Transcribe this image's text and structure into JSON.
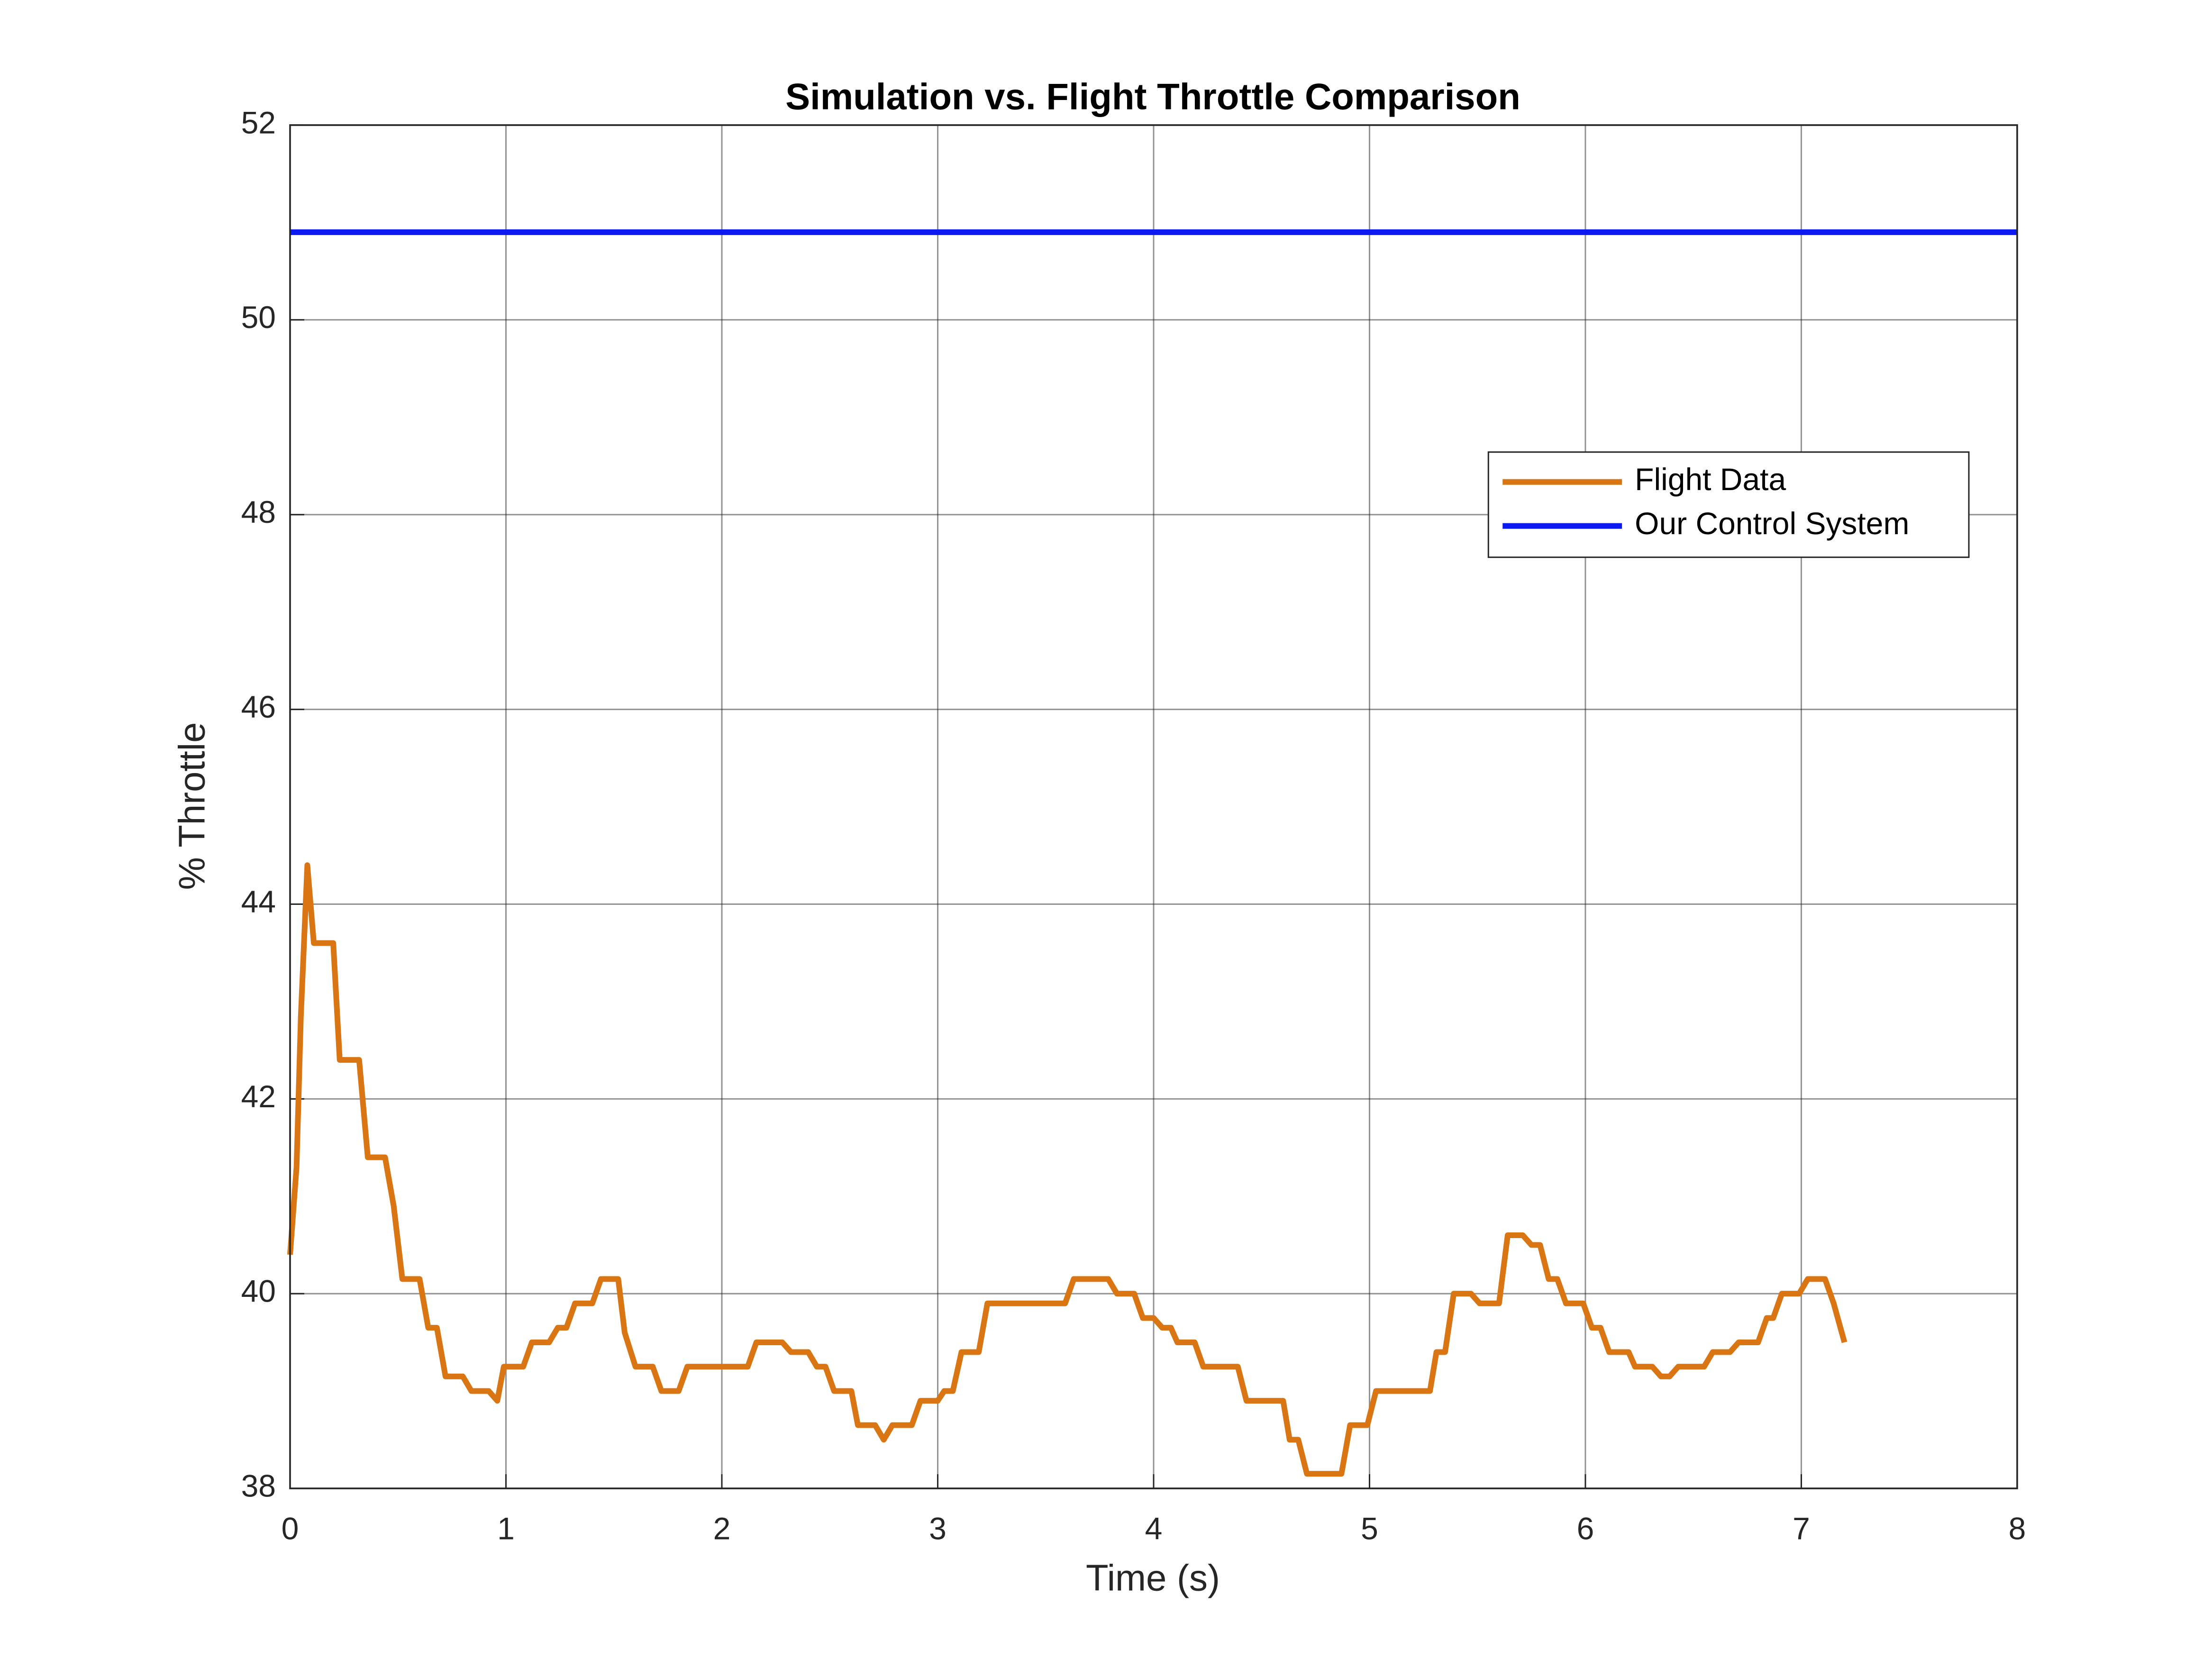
{
  "chart_data": {
    "type": "line",
    "title": "Simulation vs. Flight Throttle Comparison",
    "x_label": "Time (s)",
    "y_label": "% Throttle",
    "xlim": [
      0,
      8
    ],
    "xticks": [
      0,
      1,
      2,
      3,
      4,
      5,
      6,
      7,
      8
    ],
    "ylim": [
      38,
      52
    ],
    "yticks": [
      38,
      40,
      42,
      44,
      46,
      48,
      50,
      52
    ],
    "grid": true,
    "series": [
      {
        "name": "Flight Data",
        "color": "#d97512",
        "x": [
          0,
          0.03,
          0.05,
          0.08,
          0.11,
          0.2,
          0.23,
          0.32,
          0.36,
          0.44,
          0.48,
          0.52,
          0.6,
          0.64,
          0.68,
          0.72,
          0.8,
          0.84,
          0.92,
          0.96,
          0.99,
          1.08,
          1.12,
          1.2,
          1.24,
          1.28,
          1.32,
          1.4,
          1.44,
          1.52,
          1.55,
          1.6,
          1.68,
          1.72,
          1.8,
          1.84,
          2.12,
          2.16,
          2.28,
          2.32,
          2.4,
          2.44,
          2.48,
          2.52,
          2.6,
          2.63,
          2.71,
          2.75,
          2.79,
          2.88,
          2.92,
          3.0,
          3.03,
          3.07,
          3.11,
          3.19,
          3.23,
          3.59,
          3.63,
          3.79,
          3.83,
          3.91,
          3.95,
          4.0,
          4.04,
          4.08,
          4.11,
          4.19,
          4.23,
          4.39,
          4.43,
          4.6,
          4.63,
          4.67,
          4.71,
          4.87,
          4.91,
          4.99,
          5.03,
          5.28,
          5.31,
          5.35,
          5.39,
          5.47,
          5.51,
          5.6,
          5.64,
          5.71,
          5.75,
          5.79,
          5.83,
          5.87,
          5.91,
          5.99,
          6.03,
          6.07,
          6.11,
          6.2,
          6.23,
          6.31,
          6.35,
          6.39,
          6.43,
          6.55,
          6.59,
          6.67,
          6.71,
          6.8,
          6.84,
          6.87,
          6.91,
          6.99,
          7.03,
          7.11,
          7.15,
          7.2
        ],
        "values": [
          40.4,
          41.3,
          42.85,
          44.4,
          43.6,
          43.6,
          42.4,
          42.4,
          41.4,
          41.4,
          40.9,
          40.15,
          40.15,
          39.65,
          39.65,
          39.15,
          39.15,
          39.0,
          39.0,
          38.9,
          39.25,
          39.25,
          39.5,
          39.5,
          39.65,
          39.65,
          39.9,
          39.9,
          40.15,
          40.15,
          39.6,
          39.25,
          39.25,
          39.0,
          39.0,
          39.25,
          39.25,
          39.5,
          39.5,
          39.4,
          39.4,
          39.25,
          39.25,
          39.0,
          39.0,
          38.65,
          38.65,
          38.5,
          38.65,
          38.65,
          38.9,
          38.9,
          39.0,
          39.0,
          39.4,
          39.4,
          39.9,
          39.9,
          40.15,
          40.15,
          40.0,
          40.0,
          39.75,
          39.75,
          39.65,
          39.65,
          39.5,
          39.5,
          39.25,
          39.25,
          38.9,
          38.9,
          38.5,
          38.5,
          38.15,
          38.15,
          38.65,
          38.65,
          39.0,
          39.0,
          39.4,
          39.4,
          40.0,
          40.0,
          39.9,
          39.9,
          40.6,
          40.6,
          40.5,
          40.5,
          40.15,
          40.15,
          39.9,
          39.9,
          39.65,
          39.65,
          39.4,
          39.4,
          39.25,
          39.25,
          39.15,
          39.15,
          39.25,
          39.25,
          39.4,
          39.4,
          39.5,
          39.5,
          39.75,
          39.75,
          40.0,
          40.0,
          40.15,
          40.15,
          39.9,
          39.5
        ]
      },
      {
        "name": "Our Control System",
        "color": "#0a1af0",
        "x": [
          0,
          8
        ],
        "values": [
          50.9,
          50.9
        ]
      }
    ]
  }
}
